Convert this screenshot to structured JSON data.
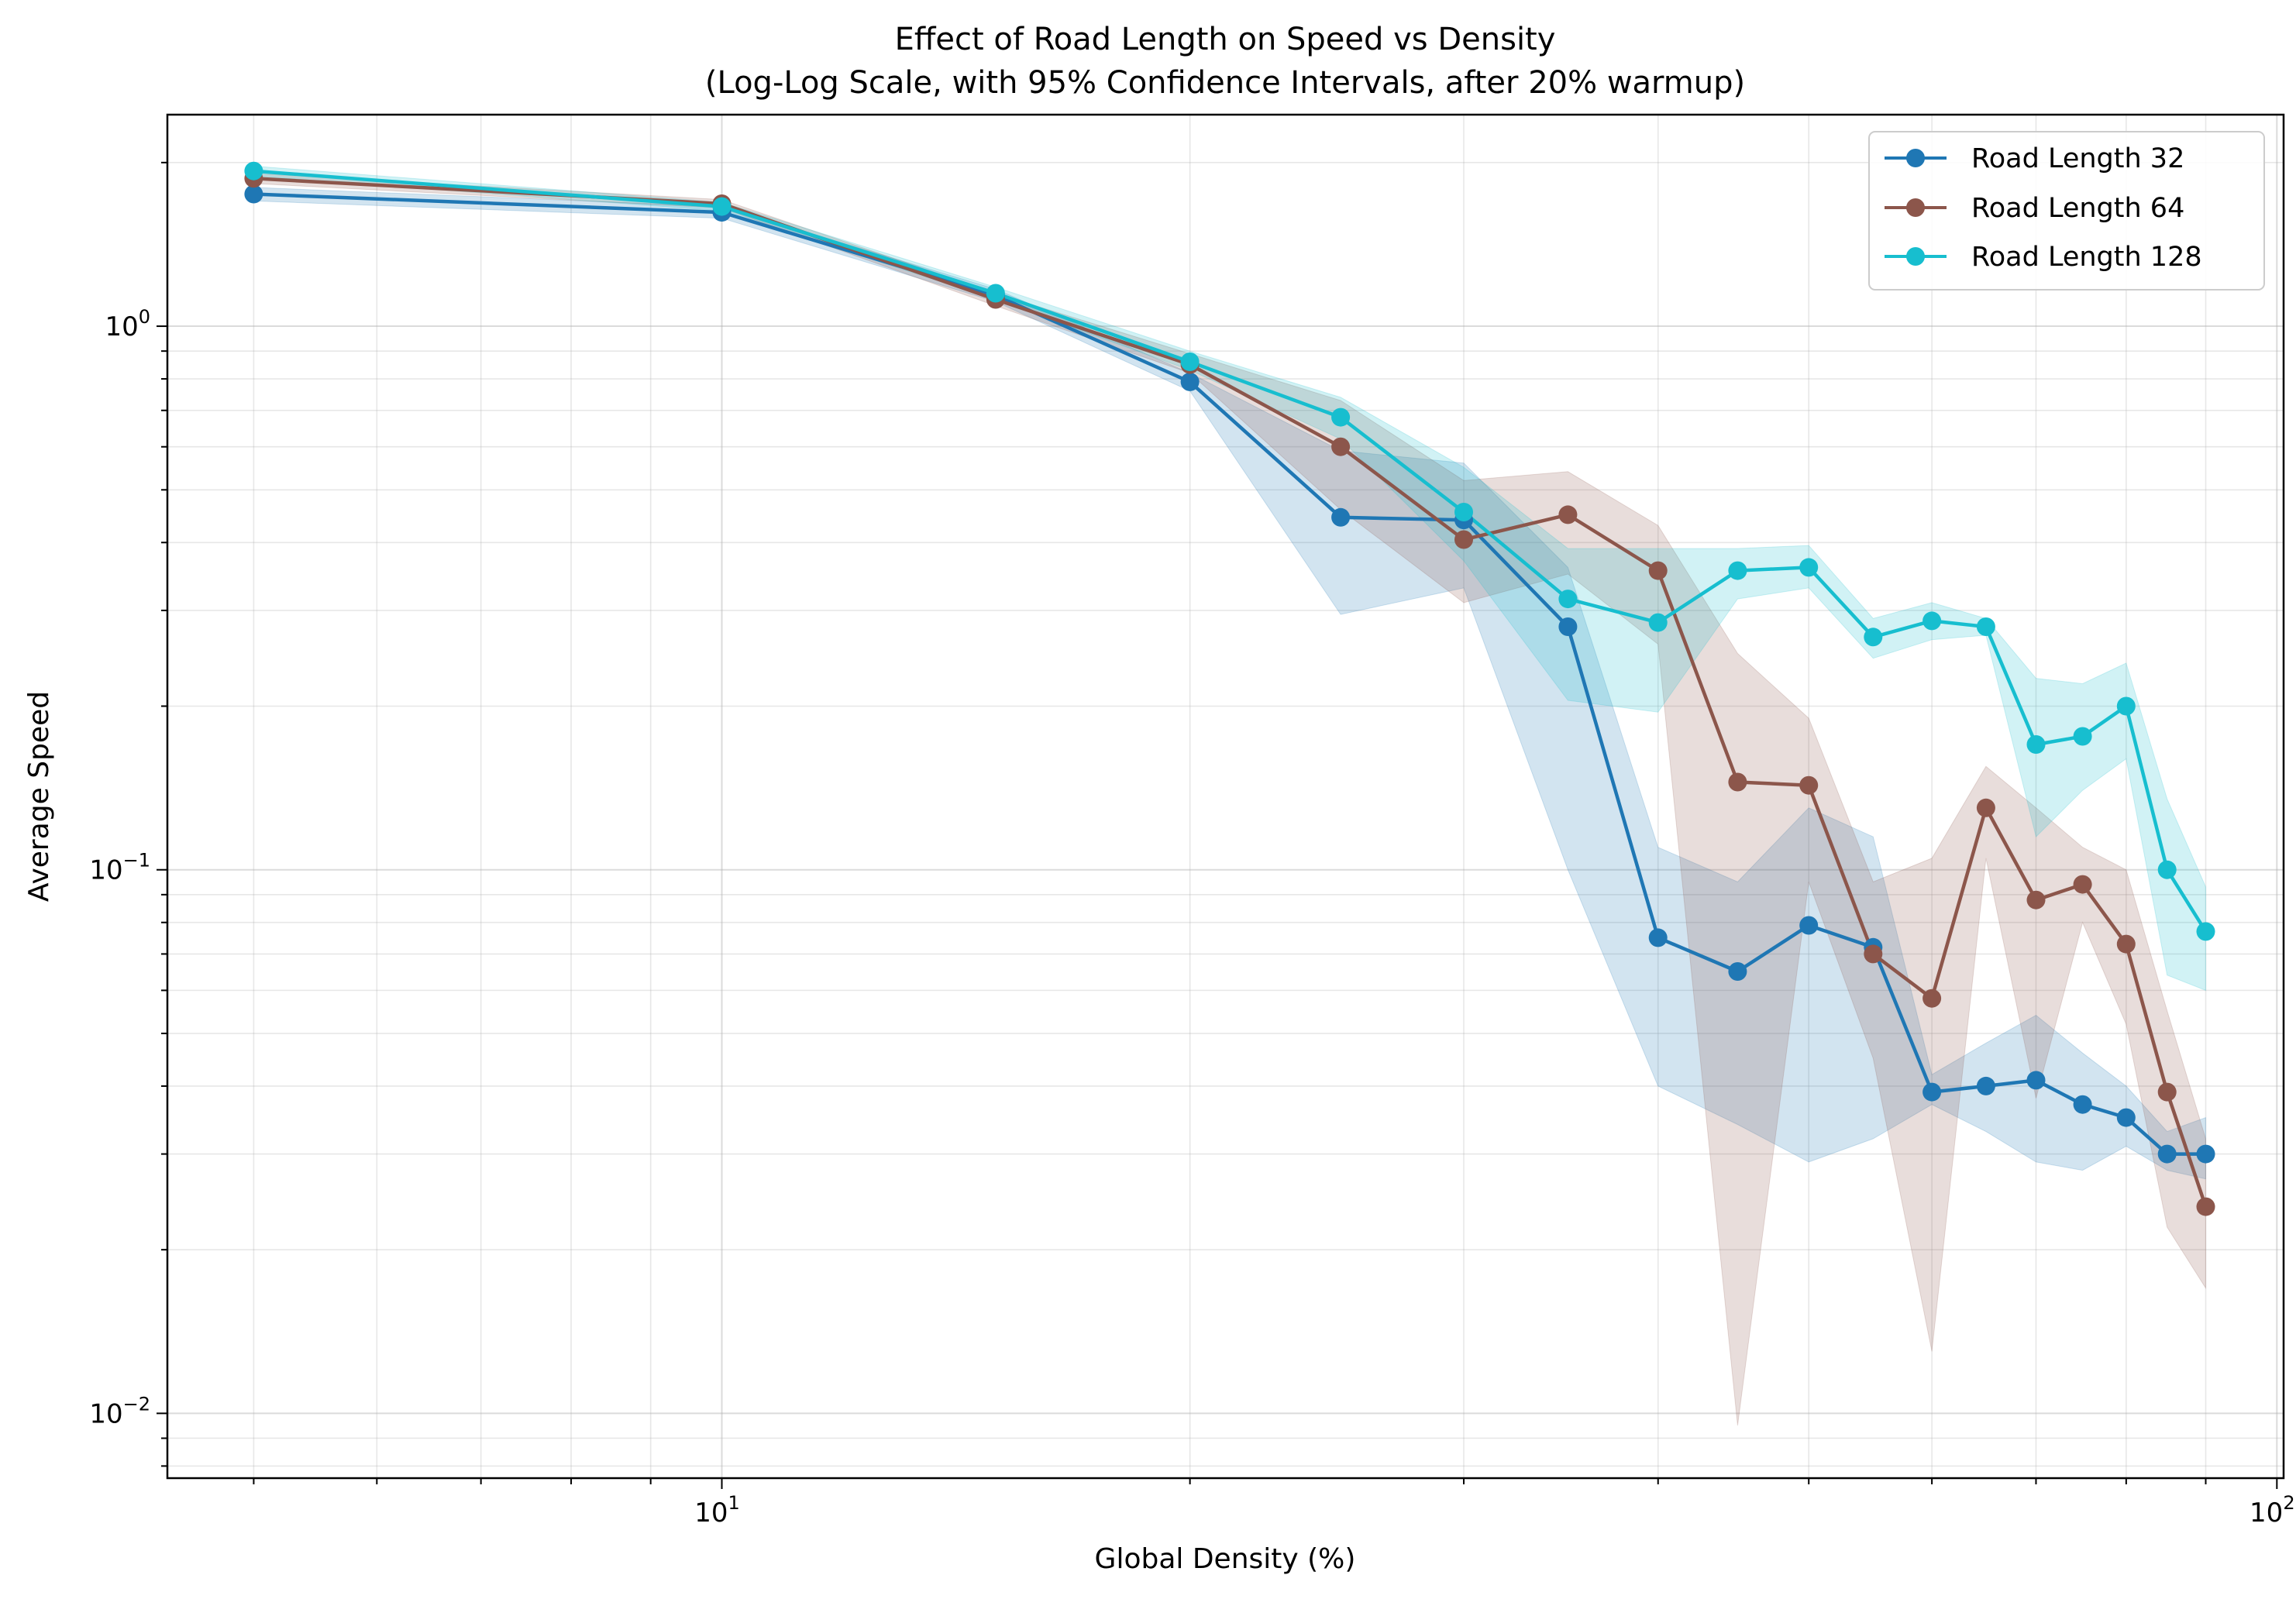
{
  "chart_data": {
    "type": "line",
    "title": "Effect of Road Length on Speed vs Density",
    "subtitle": "(Log-Log Scale, with 95% Confidence Intervals, after 20% warmup)",
    "xlabel": "Global Density (%)",
    "ylabel": "Average Speed",
    "xscale": "log",
    "yscale": "log",
    "xlim": [
      4.4,
      101
    ],
    "ylim": [
      0.0076,
      2.45
    ],
    "xtick_labels": [
      {
        "value": 10,
        "base": "10",
        "exp": "1"
      },
      {
        "value": 100,
        "base": "10",
        "exp": "2"
      }
    ],
    "ytick_labels": [
      {
        "value": 0.01,
        "base": "10",
        "exp": "−2"
      },
      {
        "value": 0.1,
        "base": "10",
        "exp": "−1"
      },
      {
        "value": 1,
        "base": "10",
        "exp": "0"
      }
    ],
    "grid": true,
    "legend_position": "top-right",
    "x": [
      5,
      10,
      15,
      20,
      25,
      30,
      35,
      40,
      45,
      50,
      55,
      60,
      65,
      70,
      75,
      80,
      85,
      90
    ],
    "series": [
      {
        "name": "Road Length 32",
        "color": "#1f77b4",
        "values": [
          1.75,
          1.62,
          1.14,
          0.79,
          0.445,
          0.44,
          0.28,
          0.075,
          0.065,
          0.079,
          0.072,
          0.039,
          0.04,
          0.041,
          0.037,
          0.035,
          0.03,
          0.03
        ],
        "ci_lower": [
          1.7,
          1.58,
          1.11,
          0.76,
          0.295,
          0.33,
          0.1,
          0.04,
          0.034,
          0.029,
          0.032,
          0.037,
          0.033,
          0.029,
          0.028,
          0.031,
          0.028,
          0.027
        ],
        "ci_upper": [
          1.8,
          1.66,
          1.17,
          0.82,
          0.59,
          0.56,
          0.36,
          0.11,
          0.095,
          0.13,
          0.115,
          0.042,
          0.048,
          0.054,
          0.046,
          0.04,
          0.033,
          0.035
        ]
      },
      {
        "name": "Road Length 64",
        "color": "#8c564b",
        "values": [
          1.87,
          1.68,
          1.12,
          0.85,
          0.6,
          0.405,
          0.45,
          0.355,
          0.145,
          0.143,
          0.07,
          0.058,
          0.13,
          0.088,
          0.094,
          0.073,
          0.039,
          0.024
        ],
        "ci_lower": [
          1.83,
          1.65,
          1.09,
          0.82,
          0.46,
          0.31,
          0.35,
          0.26,
          0.0095,
          0.095,
          0.045,
          0.013,
          0.105,
          0.038,
          0.08,
          0.052,
          0.022,
          0.017
        ],
        "ci_upper": [
          1.91,
          1.71,
          1.15,
          0.89,
          0.73,
          0.52,
          0.54,
          0.43,
          0.25,
          0.19,
          0.095,
          0.105,
          0.155,
          0.13,
          0.11,
          0.1,
          0.055,
          0.032
        ]
      },
      {
        "name": "Road Length 128",
        "color": "#17becf",
        "values": [
          1.93,
          1.66,
          1.15,
          0.86,
          0.68,
          0.455,
          0.315,
          0.285,
          0.355,
          0.36,
          0.268,
          0.287,
          0.28,
          0.17,
          0.176,
          0.2,
          0.1,
          0.077
        ],
        "ci_lower": [
          1.89,
          1.63,
          1.12,
          0.83,
          0.62,
          0.37,
          0.205,
          0.195,
          0.315,
          0.33,
          0.245,
          0.265,
          0.27,
          0.115,
          0.14,
          0.16,
          0.064,
          0.06
        ],
        "ci_upper": [
          1.97,
          1.69,
          1.18,
          0.9,
          0.74,
          0.55,
          0.39,
          0.39,
          0.39,
          0.395,
          0.29,
          0.31,
          0.29,
          0.225,
          0.22,
          0.24,
          0.135,
          0.093
        ]
      }
    ]
  }
}
